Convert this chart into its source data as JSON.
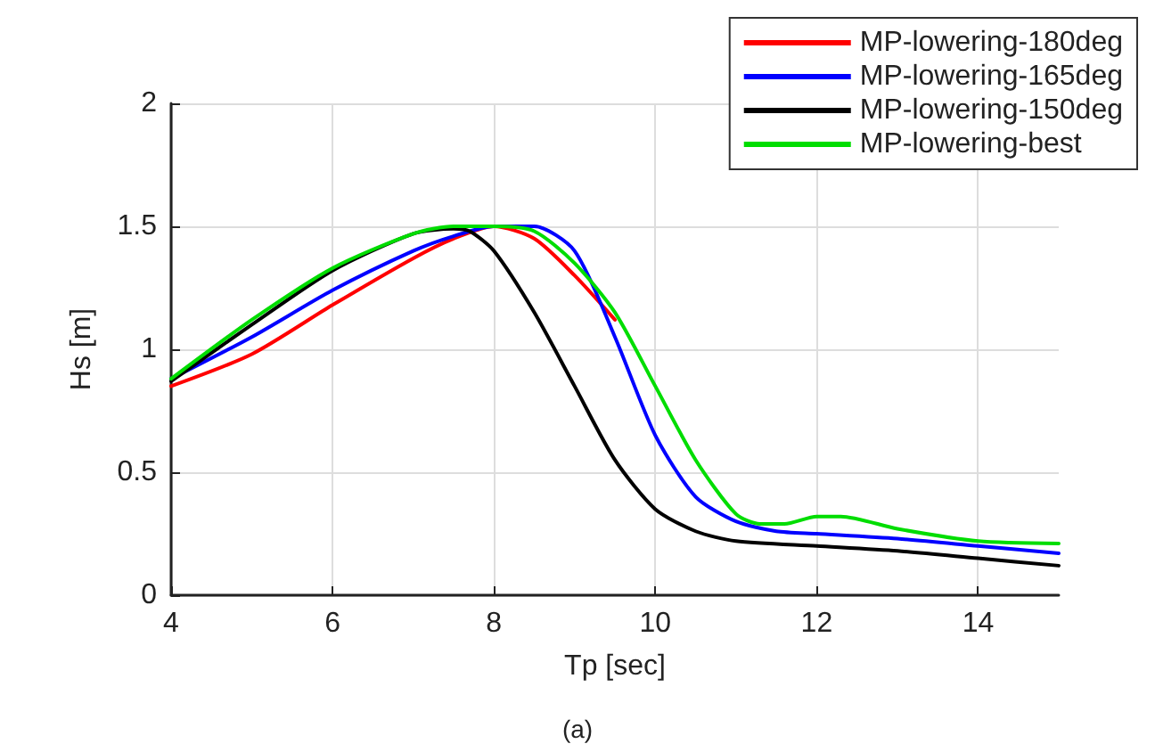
{
  "chart_data": {
    "type": "line",
    "xlabel": "Tp [sec]",
    "ylabel": "Hs [m]",
    "annotations": [
      "(a)"
    ],
    "xlim": [
      4,
      15
    ],
    "xticks": [
      4,
      6,
      8,
      10,
      12,
      14
    ],
    "ylim": [
      0,
      2
    ],
    "yticks": [
      0,
      0.5,
      1,
      1.5,
      2
    ],
    "grid": true,
    "legend": "top right",
    "marker": "none",
    "series": [
      {
        "name": "MP-lowering-180deg",
        "color": "#ff0000",
        "x": [
          4,
          5,
          6,
          7,
          7.5,
          8,
          8.5,
          9,
          9.5
        ],
        "values": [
          0.85,
          0.98,
          1.18,
          1.37,
          1.45,
          1.5,
          1.45,
          1.3,
          1.12
        ]
      },
      {
        "name": "MP-lowering-165deg",
        "color": "#0000ff",
        "x": [
          4,
          5,
          6,
          7,
          7.5,
          8,
          8.5,
          9,
          9.5,
          10,
          10.5,
          11,
          11.5,
          12,
          13,
          14,
          15
        ],
        "values": [
          0.88,
          1.05,
          1.24,
          1.4,
          1.46,
          1.5,
          1.5,
          1.4,
          1.05,
          0.65,
          0.4,
          0.3,
          0.26,
          0.25,
          0.23,
          0.2,
          0.17
        ]
      },
      {
        "name": "MP-lowering-150deg",
        "color": "#000000",
        "x": [
          4,
          5,
          6,
          7,
          7.5,
          7.7,
          8,
          8.5,
          9,
          9.5,
          10,
          10.5,
          11,
          12,
          13,
          14,
          15
        ],
        "values": [
          0.87,
          1.1,
          1.32,
          1.47,
          1.49,
          1.48,
          1.4,
          1.15,
          0.85,
          0.55,
          0.35,
          0.26,
          0.22,
          0.2,
          0.18,
          0.15,
          0.12
        ]
      },
      {
        "name": "MP-lowering-best",
        "color": "#00dd00",
        "x": [
          4,
          5,
          6,
          7,
          7.5,
          8,
          8.5,
          9,
          9.5,
          10,
          10.5,
          11,
          11.3,
          11.6,
          12,
          12.3,
          13,
          14,
          15
        ],
        "values": [
          0.88,
          1.12,
          1.33,
          1.47,
          1.5,
          1.5,
          1.48,
          1.35,
          1.15,
          0.85,
          0.55,
          0.33,
          0.29,
          0.29,
          0.32,
          0.32,
          0.27,
          0.22,
          0.21
        ]
      }
    ]
  }
}
